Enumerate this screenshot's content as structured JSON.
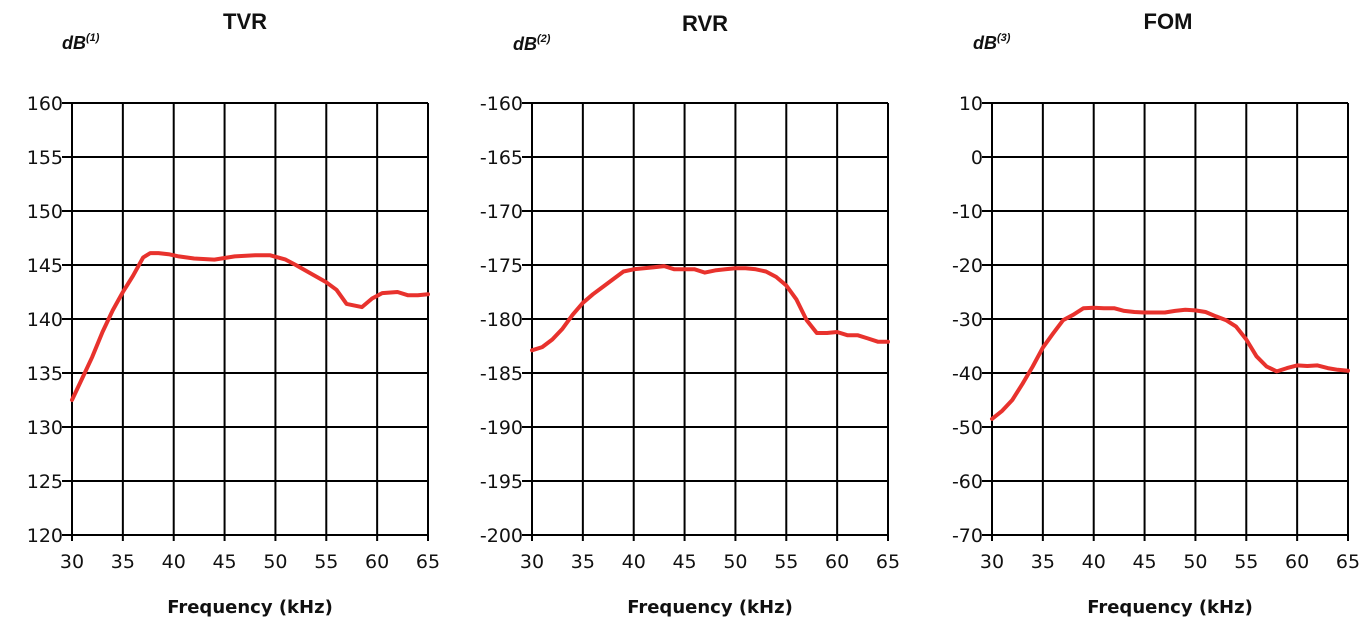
{
  "colors": {
    "series": "#e8322d",
    "grid": "#000000",
    "text": "#111111"
  },
  "chart_data": [
    {
      "type": "line",
      "title": "TVR",
      "ylabel": "dB",
      "ylabel_sup": "(1)",
      "xlabel": "Frequency (kHz)",
      "xlim": [
        30,
        65
      ],
      "ylim": [
        120,
        160
      ],
      "x_ticks": [
        "30",
        "35",
        "40",
        "45",
        "50",
        "55",
        "60",
        "65"
      ],
      "y_ticks": [
        "160",
        "155",
        "150",
        "145",
        "140",
        "135",
        "130",
        "125",
        "120"
      ],
      "grid": true,
      "series": [
        {
          "x": [
            30,
            31,
            32,
            33,
            34,
            35,
            36,
            37,
            37.7,
            38.5,
            39.5,
            40.5,
            42,
            44,
            46,
            48,
            49.5,
            51,
            52,
            53.5,
            55,
            56,
            57,
            58.5,
            59.5,
            60.5,
            62,
            63,
            64,
            65
          ],
          "y": [
            132.5,
            134.5,
            136.5,
            138.8,
            140.8,
            142.5,
            144,
            145.7,
            146.1,
            146.1,
            146.0,
            145.8,
            145.6,
            145.5,
            145.8,
            145.9,
            145.9,
            145.5,
            145.0,
            144.2,
            143.4,
            142.7,
            141.4,
            141.1,
            141.9,
            142.4,
            142.5,
            142.2,
            142.2,
            142.3
          ]
        }
      ]
    },
    {
      "type": "line",
      "title": "RVR",
      "ylabel": "dB",
      "ylabel_sup": "(2)",
      "xlabel": "Frequency (kHz)",
      "xlim": [
        30,
        65
      ],
      "ylim": [
        -200,
        -160
      ],
      "x_ticks": [
        "30",
        "35",
        "40",
        "45",
        "50",
        "55",
        "60",
        "65"
      ],
      "y_ticks": [
        "-160",
        "-165",
        "-170",
        "-175",
        "-180",
        "-185",
        "-190",
        "-195",
        "-200"
      ],
      "grid": true,
      "series": [
        {
          "x": [
            30,
            31,
            32,
            33,
            34,
            35,
            36,
            37,
            38,
            39,
            40,
            41,
            42,
            43,
            44,
            45,
            46,
            47,
            48,
            49,
            50,
            51,
            52,
            53,
            54,
            55,
            56,
            57,
            58,
            59,
            60,
            61,
            62,
            63,
            64,
            65
          ],
          "y": [
            -182.9,
            -182.6,
            -181.9,
            -180.9,
            -179.6,
            -178.5,
            -177.7,
            -177.0,
            -176.3,
            -175.6,
            -175.4,
            -175.3,
            -175.2,
            -175.1,
            -175.4,
            -175.4,
            -175.4,
            -175.7,
            -175.5,
            -175.4,
            -175.3,
            -175.3,
            -175.4,
            -175.6,
            -176.1,
            -176.9,
            -178.2,
            -180.1,
            -181.3,
            -181.3,
            -181.2,
            -181.5,
            -181.5,
            -181.8,
            -182.1,
            -182.1
          ]
        }
      ]
    },
    {
      "type": "line",
      "title": "FOM",
      "ylabel": "dB",
      "ylabel_sup": "(3)",
      "xlabel": "Frequency (kHz)",
      "xlim": [
        30,
        65
      ],
      "ylim": [
        -70,
        10
      ],
      "x_ticks": [
        "30",
        "35",
        "40",
        "45",
        "50",
        "55",
        "60",
        "65"
      ],
      "y_ticks": [
        "10",
        "0",
        "-10",
        "-20",
        "-30",
        "-40",
        "-50",
        "-60",
        "-70"
      ],
      "grid": true,
      "series": [
        {
          "x": [
            30,
            31,
            32,
            33,
            34,
            35,
            36,
            37,
            38,
            39,
            40,
            41,
            42,
            43,
            44,
            45,
            46,
            47,
            48,
            49,
            50,
            51,
            52,
            53,
            54,
            55,
            56,
            57,
            58,
            59,
            60,
            61,
            62,
            63,
            64,
            65
          ],
          "y": [
            -48.5,
            -47.0,
            -45.0,
            -42.0,
            -38.8,
            -35.3,
            -32.7,
            -30.2,
            -29.2,
            -28.0,
            -27.9,
            -28.0,
            -28.0,
            -28.5,
            -28.7,
            -28.8,
            -28.8,
            -28.8,
            -28.5,
            -28.3,
            -28.4,
            -28.7,
            -29.5,
            -30.2,
            -31.4,
            -33.8,
            -36.9,
            -38.8,
            -39.7,
            -39.1,
            -38.6,
            -38.7,
            -38.6,
            -39.1,
            -39.4,
            -39.6
          ]
        }
      ]
    }
  ]
}
